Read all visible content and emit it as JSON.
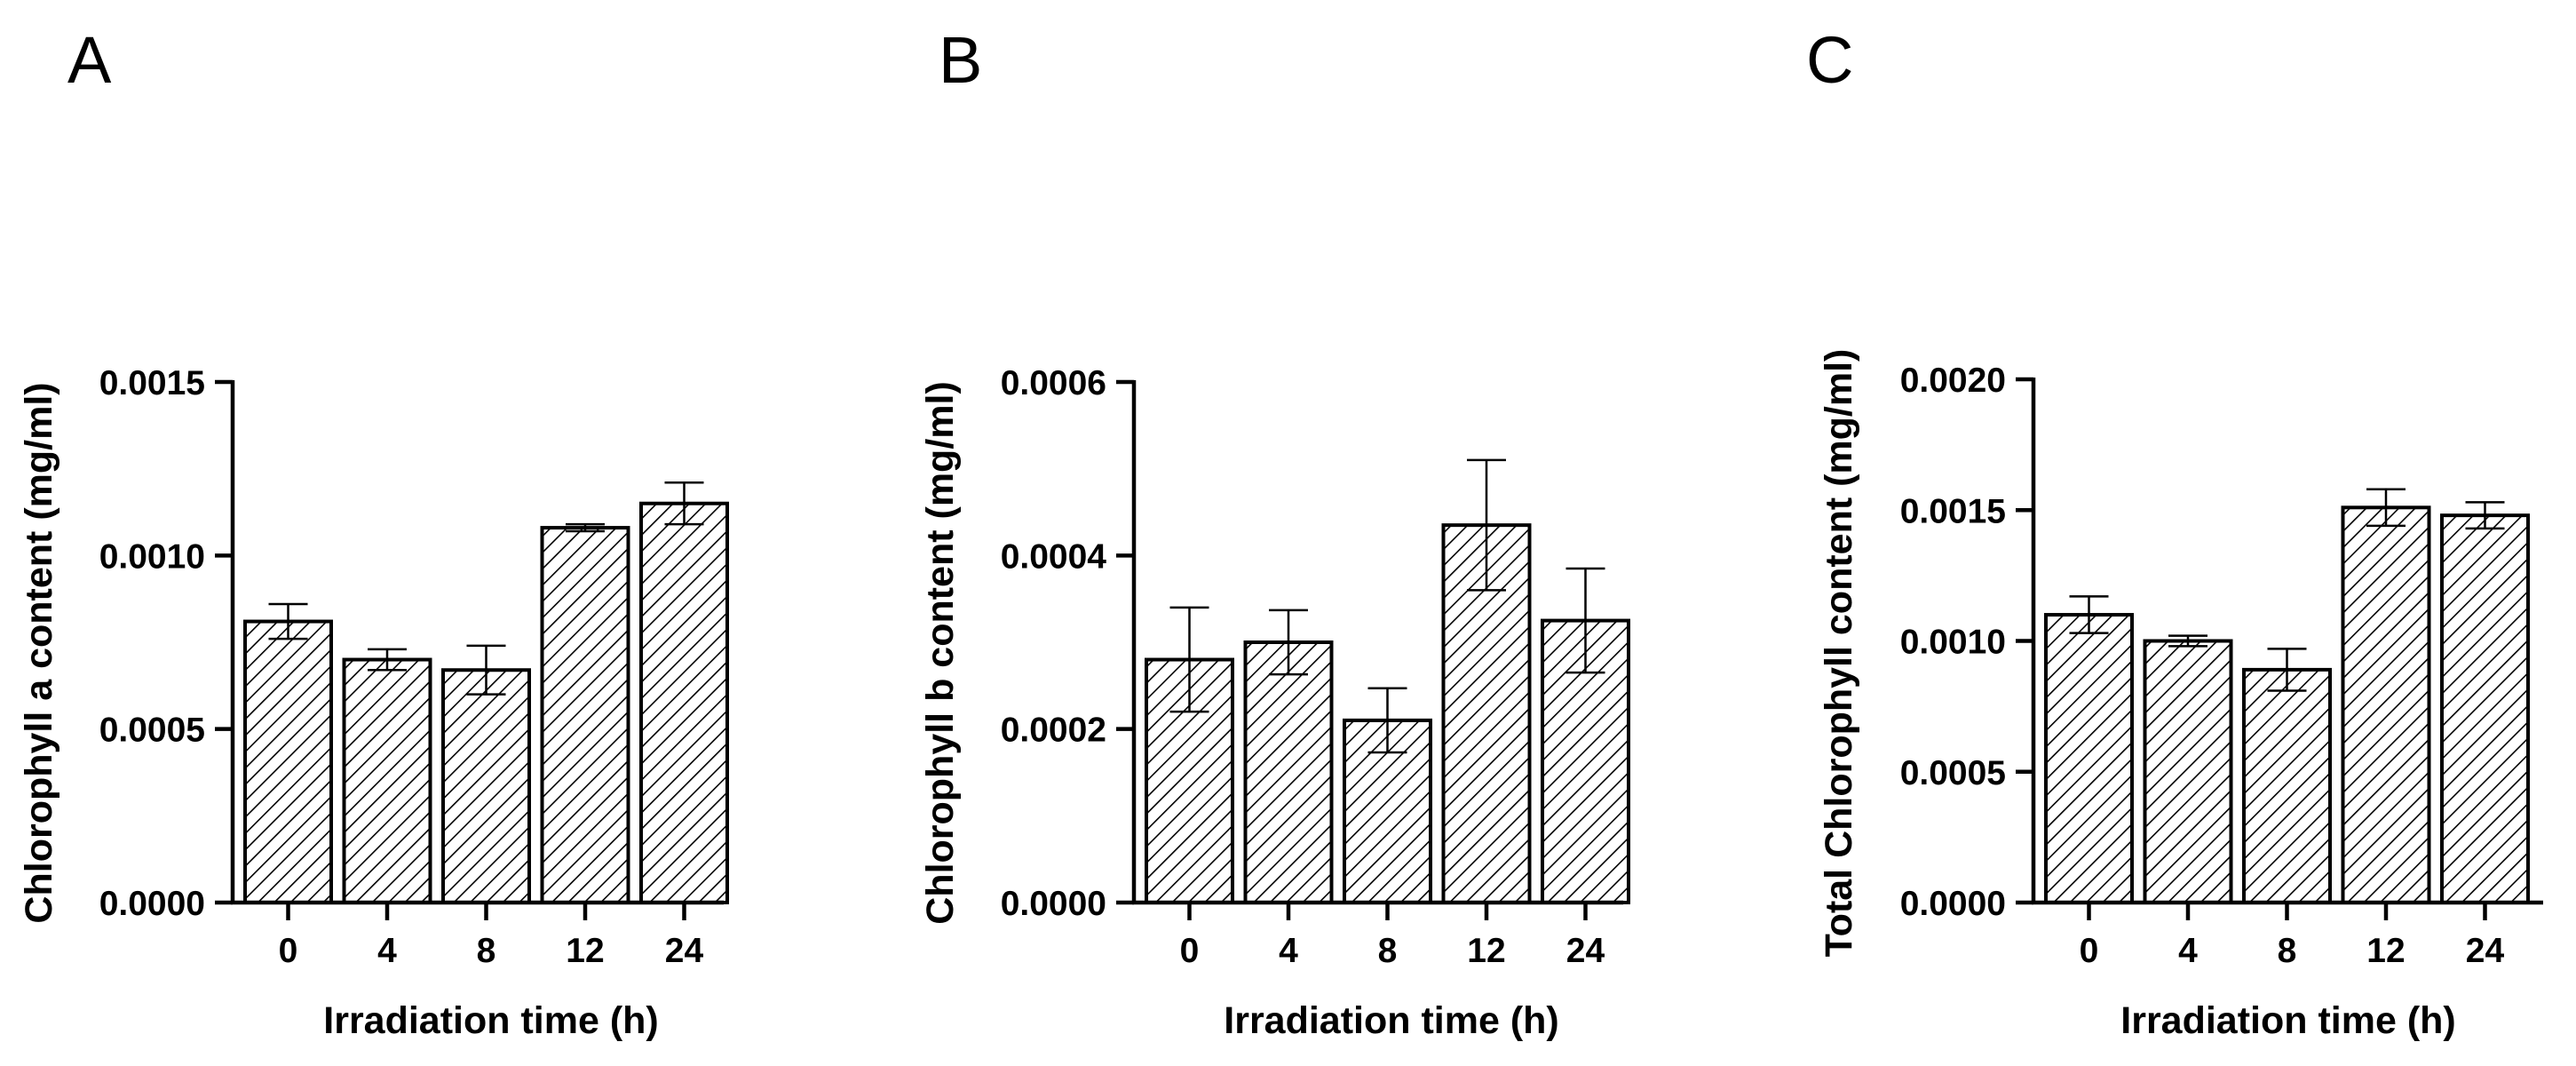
{
  "figure": {
    "panels": [
      "A",
      "B",
      "C"
    ]
  },
  "chart_data": [
    {
      "panel": "A",
      "type": "bar",
      "pattern": "diagonal-hatch",
      "title": "",
      "xlabel": "Irradiation time (h)",
      "ylabel": "Chlorophyll a content (mg/ml)",
      "categories": [
        "0",
        "4",
        "8",
        "12",
        "24"
      ],
      "values": [
        0.00081,
        0.0007,
        0.00067,
        0.00108,
        0.00115
      ],
      "errors": [
        5e-05,
        3e-05,
        7e-05,
        1e-05,
        6e-05
      ],
      "ylim": [
        0,
        0.0015
      ],
      "yticks": [
        0.0,
        0.0005,
        0.001,
        0.0015
      ],
      "ytick_labels": [
        "0.0000",
        "0.0005",
        "0.0010",
        "0.0015"
      ]
    },
    {
      "panel": "B",
      "type": "bar",
      "pattern": "diagonal-hatch",
      "title": "",
      "xlabel": "Irradiation time (h)",
      "ylabel": "Chlorophyll b content (mg/ml)",
      "categories": [
        "0",
        "4",
        "8",
        "12",
        "24"
      ],
      "values": [
        0.00028,
        0.0003,
        0.00021,
        0.000435,
        0.000325
      ],
      "errors": [
        6e-05,
        3.7e-05,
        3.7e-05,
        7.5e-05,
        6e-05
      ],
      "ylim": [
        0,
        0.0006
      ],
      "yticks": [
        0.0,
        0.0002,
        0.0004,
        0.0006
      ],
      "ytick_labels": [
        "0.0000",
        "0.0002",
        "0.0004",
        "0.0006"
      ]
    },
    {
      "panel": "C",
      "type": "bar",
      "pattern": "diagonal-hatch",
      "title": "",
      "xlabel": "Irradiation time (h)",
      "ylabel": "Total Chlorophyll content (mg/ml)",
      "categories": [
        "0",
        "4",
        "8",
        "12",
        "24"
      ],
      "values": [
        0.0011,
        0.001,
        0.00089,
        0.00151,
        0.00148
      ],
      "errors": [
        7e-05,
        2e-05,
        8e-05,
        7e-05,
        5e-05
      ],
      "ylim": [
        0,
        0.002
      ],
      "yticks": [
        0.0,
        0.0005,
        0.001,
        0.0015,
        0.002
      ],
      "ytick_labels": [
        "0.0000",
        "0.0005",
        "0.0010",
        "0.0015",
        "0.0020"
      ]
    }
  ]
}
